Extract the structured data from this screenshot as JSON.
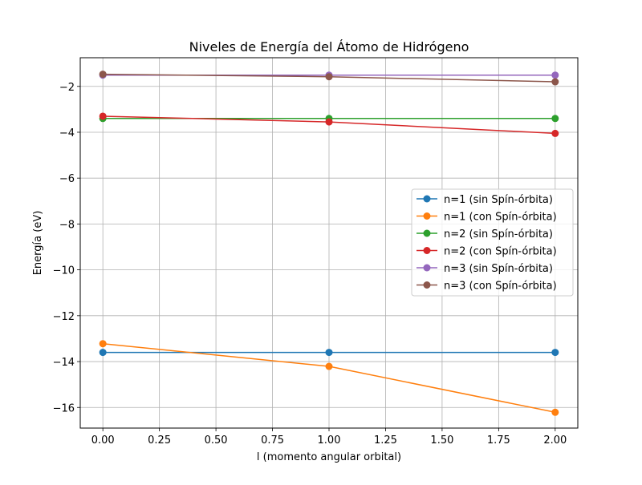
{
  "chart_data": {
    "type": "line",
    "title": "Niveles de Energía del Átomo de Hidrógeno",
    "xlabel": "l (momento angular orbital)",
    "ylabel": "Energía (eV)",
    "xlim": [
      -0.1,
      2.1
    ],
    "ylim": [
      -16.9,
      -0.75
    ],
    "grid": true,
    "legend_position": "center-right",
    "x": [
      0,
      1,
      2
    ],
    "xticks": [
      0.0,
      0.25,
      0.5,
      0.75,
      1.0,
      1.25,
      1.5,
      1.75,
      2.0
    ],
    "xtick_labels": [
      "0.00",
      "0.25",
      "0.50",
      "0.75",
      "1.00",
      "1.25",
      "1.50",
      "1.75",
      "2.00"
    ],
    "yticks": [
      -16,
      -14,
      -12,
      -10,
      -8,
      -6,
      -4,
      -2
    ],
    "ytick_labels": [
      "−16",
      "−14",
      "−12",
      "−10",
      "−8",
      "−6",
      "−4",
      "−2"
    ],
    "series": [
      {
        "name": "n=1 (sin Spín-órbita)",
        "color": "#1f77b4",
        "values": [
          -13.6,
          -13.6,
          -13.6
        ]
      },
      {
        "name": "n=1 (con Spín-órbita)",
        "color": "#ff7f0e",
        "values": [
          -13.22,
          -14.21,
          -16.21
        ]
      },
      {
        "name": "n=2 (sin Spín-órbita)",
        "color": "#2ca02c",
        "values": [
          -3.4,
          -3.4,
          -3.4
        ]
      },
      {
        "name": "n=2 (con Spín-órbita)",
        "color": "#d62728",
        "values": [
          -3.3,
          -3.55,
          -4.05
        ]
      },
      {
        "name": "n=3 (sin Spín-órbita)",
        "color": "#9467bd",
        "values": [
          -1.51,
          -1.51,
          -1.51
        ]
      },
      {
        "name": "n=3 (con Spín-órbita)",
        "color": "#8c564b",
        "values": [
          -1.47,
          -1.58,
          -1.8
        ]
      }
    ]
  }
}
